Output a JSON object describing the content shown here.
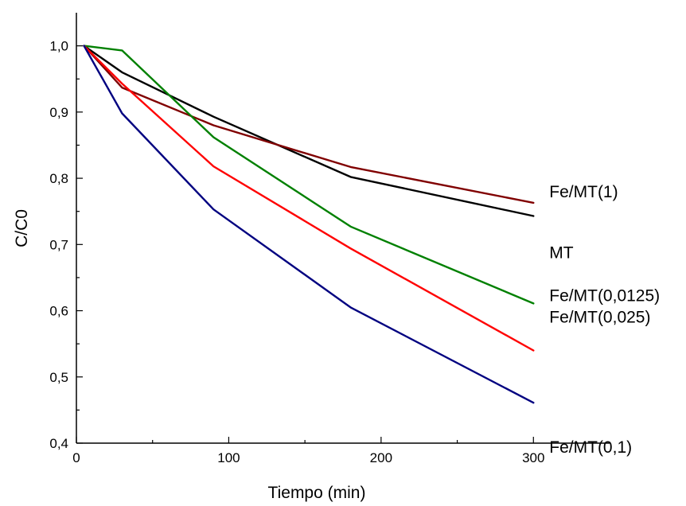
{
  "chart_data": {
    "type": "line",
    "xlabel": "Tiempo (min)",
    "ylabel": "C/C0",
    "xlim": [
      0,
      350
    ],
    "ylim": [
      0.4,
      1.05
    ],
    "xticks": [
      0,
      100,
      200,
      300
    ],
    "xtick_labels": [
      "0",
      "100",
      "200",
      "300"
    ],
    "yticks": [
      0.4,
      0.5,
      0.6,
      0.7,
      0.8,
      0.9,
      1.0
    ],
    "ytick_labels": [
      "0,4",
      "0,5",
      "0,6",
      "0,7",
      "0,8",
      "0,9",
      "1,0"
    ],
    "grid": false,
    "legend": "none",
    "series": [
      {
        "name": "MT",
        "color": "#000000",
        "x": [
          5,
          30,
          90,
          180,
          300
        ],
        "y": [
          1.0,
          0.96,
          0.893,
          0.802,
          0.743
        ]
      },
      {
        "name": "Fe/MT(1)",
        "color": "#800000",
        "x": [
          5,
          30,
          90,
          180,
          300
        ],
        "y": [
          1.0,
          0.937,
          0.88,
          0.817,
          0.763
        ]
      },
      {
        "name": "Fe/MT(0,0125)",
        "color": "#008000",
        "x": [
          5,
          30,
          90,
          180,
          300
        ],
        "y": [
          1.0,
          0.993,
          0.862,
          0.727,
          0.611
        ]
      },
      {
        "name": "Fe/MT(0,025)",
        "color": "#ff0000",
        "x": [
          5,
          30,
          90,
          180,
          300
        ],
        "y": [
          1.0,
          0.943,
          0.818,
          0.694,
          0.54
        ]
      },
      {
        "name": "Fe/MT(0,1)",
        "color": "#000080",
        "x": [
          5,
          30,
          90,
          180,
          300
        ],
        "y": [
          1.0,
          0.898,
          0.753,
          0.605,
          0.461
        ]
      }
    ]
  }
}
